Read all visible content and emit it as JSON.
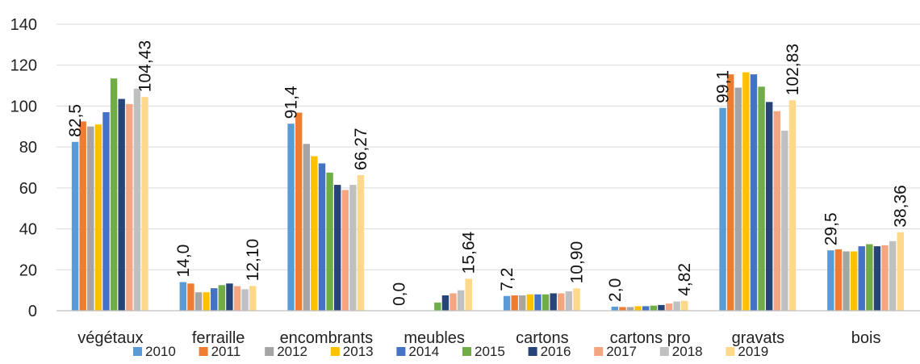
{
  "chart_data": {
    "type": "bar",
    "title": "",
    "xlabel": "",
    "ylabel": "",
    "ylim": [
      0,
      140
    ],
    "yticks": [
      0,
      20,
      40,
      60,
      80,
      100,
      120,
      140
    ],
    "grid": true,
    "legend_position": "bottom",
    "categories": [
      "végétaux",
      "ferraille",
      "encombrants",
      "meubles",
      "cartons",
      "cartons pro",
      "gravats",
      "bois"
    ],
    "series": [
      {
        "name": "2010",
        "color": "#5b9bd5",
        "values": [
          82.5,
          14.0,
          91.4,
          0.0,
          7.2,
          2.0,
          99.1,
          29.5
        ]
      },
      {
        "name": "2011",
        "color": "#ed7d31",
        "values": [
          92.5,
          13.3,
          96.8,
          0.0,
          7.5,
          1.8,
          115.5,
          30.0
        ]
      },
      {
        "name": "2012",
        "color": "#a5a5a5",
        "values": [
          90.0,
          9.0,
          81.5,
          0.0,
          7.5,
          1.8,
          109.0,
          29.0
        ]
      },
      {
        "name": "2013",
        "color": "#ffc000",
        "values": [
          91.0,
          9.0,
          75.5,
          0.0,
          8.0,
          2.2,
          116.5,
          29.0
        ]
      },
      {
        "name": "2014",
        "color": "#4472c4",
        "values": [
          97.0,
          11.0,
          72.0,
          0.0,
          8.0,
          2.2,
          115.5,
          31.5
        ]
      },
      {
        "name": "2015",
        "color": "#70ad47",
        "values": [
          113.5,
          12.5,
          67.5,
          4.0,
          8.0,
          2.5,
          109.5,
          32.5
        ]
      },
      {
        "name": "2016",
        "color": "#264478",
        "values": [
          103.5,
          13.3,
          61.5,
          7.5,
          8.5,
          2.8,
          102.0,
          31.5
        ]
      },
      {
        "name": "2017",
        "color": "#f4a582",
        "values": [
          101.0,
          12.0,
          59.0,
          8.5,
          8.5,
          3.5,
          97.5,
          32.0
        ]
      },
      {
        "name": "2018",
        "color": "#c0c0c0",
        "values": [
          108.5,
          10.5,
          61.5,
          10.0,
          9.5,
          4.5,
          88.0,
          34.0
        ]
      },
      {
        "name": "2019",
        "color": "#ffd88a",
        "values": [
          104.43,
          12.1,
          66.27,
          15.64,
          10.9,
          4.82,
          102.83,
          38.36
        ]
      }
    ],
    "data_labels": [
      {
        "category": "végétaux",
        "series": "2010",
        "text": "82,5"
      },
      {
        "category": "végétaux",
        "series": "2019",
        "text": "104,43"
      },
      {
        "category": "ferraille",
        "series": "2010",
        "text": "14,0"
      },
      {
        "category": "ferraille",
        "series": "2019",
        "text": "12,10"
      },
      {
        "category": "encombrants",
        "series": "2010",
        "text": "91,4"
      },
      {
        "category": "encombrants",
        "series": "2019",
        "text": "66,27"
      },
      {
        "category": "meubles",
        "series": "2010",
        "text": "0,0"
      },
      {
        "category": "meubles",
        "series": "2019",
        "text": "15,64"
      },
      {
        "category": "cartons",
        "series": "2010",
        "text": "7,2"
      },
      {
        "category": "cartons",
        "series": "2019",
        "text": "10,90"
      },
      {
        "category": "cartons pro",
        "series": "2010",
        "text": "2,0"
      },
      {
        "category": "cartons pro",
        "series": "2019",
        "text": "4,82"
      },
      {
        "category": "gravats",
        "series": "2010",
        "text": "99,1"
      },
      {
        "category": "gravats",
        "series": "2019",
        "text": "102,83"
      },
      {
        "category": "bois",
        "series": "2010",
        "text": "29,5"
      },
      {
        "category": "bois",
        "series": "2019",
        "text": "38,36"
      }
    ]
  }
}
